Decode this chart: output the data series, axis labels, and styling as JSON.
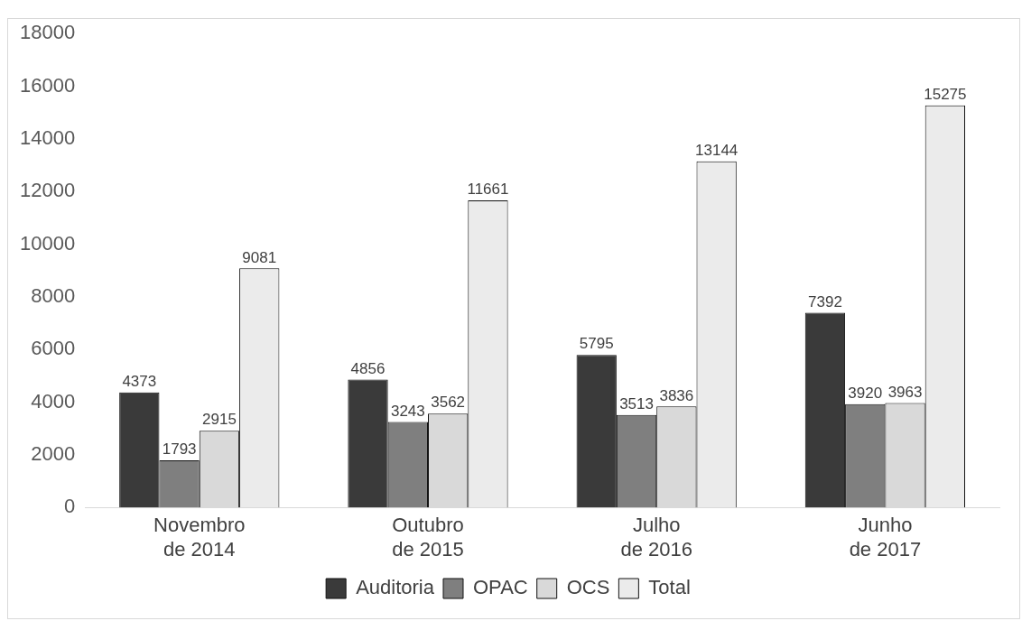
{
  "chart_data": {
    "type": "bar",
    "categories": [
      "Novembro de 2014",
      "Outubro de 2015",
      "Julho de 2016",
      "Junho de 2017"
    ],
    "series": [
      {
        "name": "Auditoria",
        "color": "#3a3a3a",
        "values": [
          4373,
          4856,
          5795,
          7392
        ]
      },
      {
        "name": "OPAC",
        "color": "#7f7f7f",
        "values": [
          1793,
          3243,
          3513,
          3920
        ]
      },
      {
        "name": "OCS",
        "color": "#d9d9d9",
        "values": [
          2915,
          3562,
          3836,
          3963
        ]
      },
      {
        "name": "Total",
        "color": "#ebebeb",
        "values": [
          9081,
          11661,
          13144,
          15275
        ]
      }
    ],
    "ylim": [
      0,
      18000
    ],
    "yticks": [
      0,
      2000,
      4000,
      6000,
      8000,
      10000,
      12000,
      14000,
      16000,
      18000
    ],
    "grid": false,
    "legend": "bottom",
    "data_labels": true
  }
}
